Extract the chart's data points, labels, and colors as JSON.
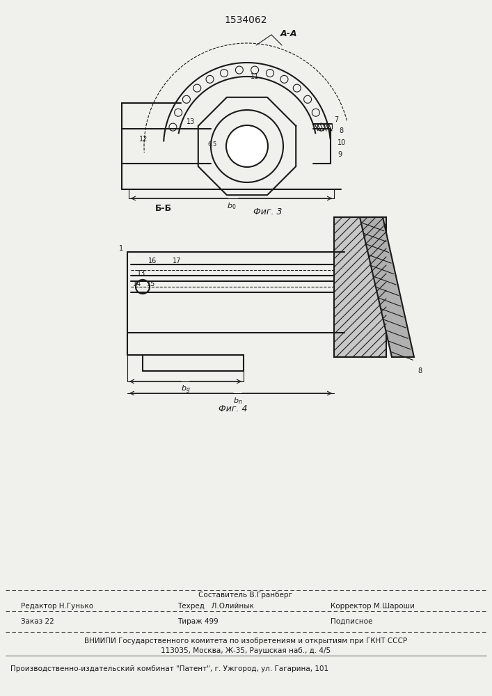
{
  "patent_number": "1534062",
  "bg_color": "#f0f0ec",
  "line_color": "#1a1a1a",
  "fig3_label": "Фиг. 3",
  "fig4_label": "Фиг. 4",
  "section_label_top": "А-А",
  "section_label_mid": "Б-Б",
  "footer_sestavitel": "Составитель В.Гранберг",
  "footer_editor": "Редактор Н.Гунько",
  "footer_tekhred": "Техред   Л.Олийнык",
  "footer_korrektor": "Корректор М.Шароши",
  "footer_zakaz": "Заказ 22",
  "footer_tirazh": "Тираж 499",
  "footer_podpisnoe": "Подписное",
  "footer_vniiipi1": "ВНИИПИ Государственного комитета по изобретениям и открытиям при ГКНТ СССР",
  "footer_vniiipi2": "113035, Москва, Ж-35, Раушская наб., д. 4/5",
  "footer_patent": "Производственно-издательский комбинат \"Патент\", г. Ужгород, ул. Гагарина, 101"
}
